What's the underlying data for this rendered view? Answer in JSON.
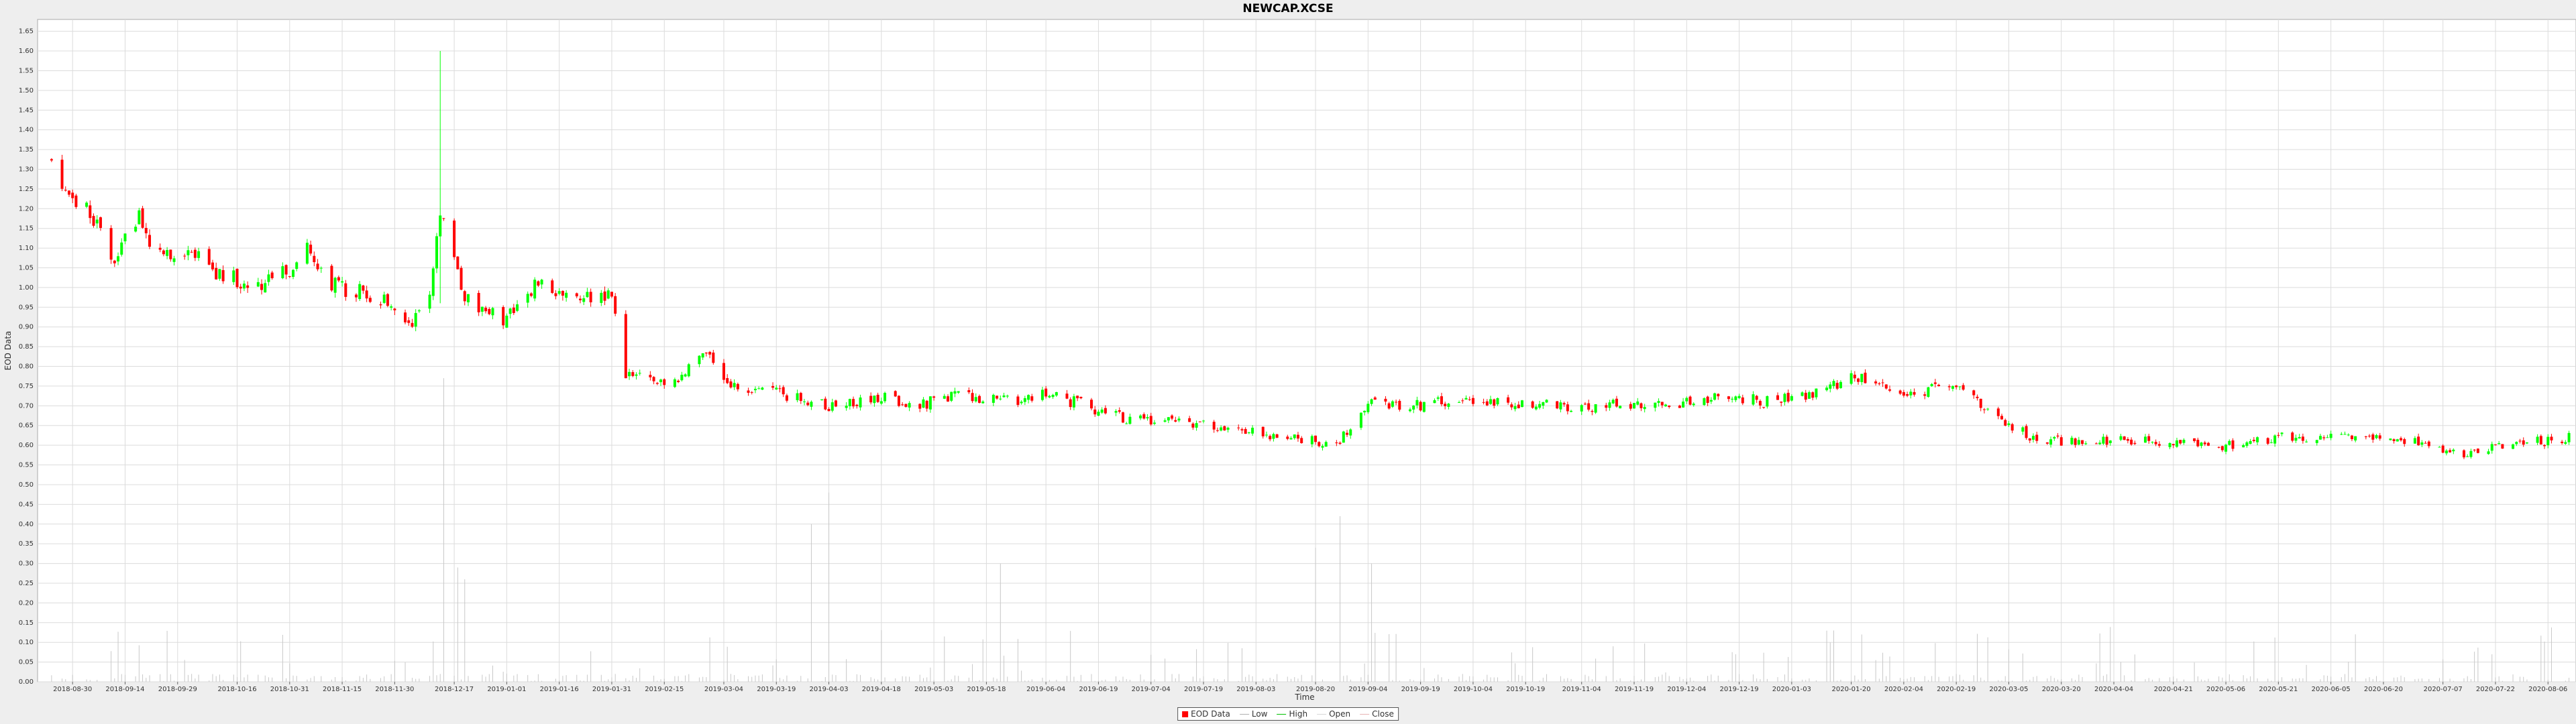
{
  "chart_data": {
    "type": "candlestick",
    "title": "NEWCAP.XCSE",
    "xlabel": "Time",
    "ylabel": "EOD Data",
    "ylim": [
      0,
      1.68
    ],
    "yticks": [
      "0.00",
      "0.05",
      "0.10",
      "0.15",
      "0.20",
      "0.25",
      "0.30",
      "0.35",
      "0.40",
      "0.45",
      "0.50",
      "0.55",
      "0.60",
      "0.65",
      "0.70",
      "0.75",
      "0.80",
      "0.85",
      "0.90",
      "0.95",
      "1.00",
      "1.05",
      "1.10",
      "1.15",
      "1.20",
      "1.25",
      "1.30",
      "1.35",
      "1.40",
      "1.45",
      "1.50",
      "1.55",
      "1.60",
      "1.65"
    ],
    "xlim": [
      "2018-08-20",
      "2020-08-14"
    ],
    "xticks": [
      "2018-08-30",
      "2018-09-14",
      "2018-09-29",
      "2018-10-16",
      "2018-10-31",
      "2018-11-15",
      "2018-11-30",
      "2018-12-17",
      "2019-01-01",
      "2019-01-16",
      "2019-01-31",
      "2019-02-15",
      "2019-03-04",
      "2019-03-19",
      "2019-04-03",
      "2019-04-18",
      "2019-05-03",
      "2019-05-18",
      "2019-06-04",
      "2019-06-19",
      "2019-07-04",
      "2019-07-19",
      "2019-08-03",
      "2019-08-20",
      "2019-09-04",
      "2019-09-19",
      "2019-10-04",
      "2019-10-19",
      "2019-11-04",
      "2019-11-19",
      "2019-12-04",
      "2019-12-19",
      "2020-01-03",
      "2020-01-20",
      "2020-02-04",
      "2020-02-19",
      "2020-03-05",
      "2020-03-20",
      "2020-04-04",
      "2020-04-21",
      "2020-05-06",
      "2020-05-21",
      "2020-06-05",
      "2020-06-20",
      "2020-07-07",
      "2020-07-22",
      "2020-08-06"
    ],
    "grid": true,
    "legend": {
      "placement": "bottom-center",
      "entries": [
        "EOD Data",
        "Low",
        "High",
        "Open",
        "Close"
      ]
    },
    "colors": {
      "up": "#00ff00",
      "down": "#ff0000",
      "volume": "#c8c8c8",
      "grid": "#dcdcdc",
      "low": "#b0b0b0",
      "high": "#00c000",
      "open": "#d8d8d8",
      "close": "#e8b4b4"
    },
    "anchors": [
      [
        "2018-08-24",
        1.32
      ],
      [
        "2018-08-30",
        1.22
      ],
      [
        "2018-09-05",
        1.18
      ],
      [
        "2018-09-10",
        1.05
      ],
      [
        "2018-09-14",
        1.12
      ],
      [
        "2018-09-18",
        1.18
      ],
      [
        "2018-09-22",
        1.07
      ],
      [
        "2018-09-29",
        1.08
      ],
      [
        "2018-10-05",
        1.07
      ],
      [
        "2018-10-10",
        1.04
      ],
      [
        "2018-10-16",
        1.02
      ],
      [
        "2018-10-22",
        1.01
      ],
      [
        "2018-10-26",
        1.03
      ],
      [
        "2018-10-31",
        1.04
      ],
      [
        "2018-11-05",
        1.1
      ],
      [
        "2018-11-10",
        1.01
      ],
      [
        "2018-11-15",
        1.0
      ],
      [
        "2018-11-20",
        0.99
      ],
      [
        "2018-11-25",
        0.97
      ],
      [
        "2018-11-30",
        0.95
      ],
      [
        "2018-12-05",
        0.92
      ],
      [
        "2018-12-10",
        0.97
      ],
      [
        "2018-12-13",
        1.2
      ],
      [
        "2018-12-17",
        1.1
      ],
      [
        "2018-12-20",
        0.97
      ],
      [
        "2018-12-27",
        0.93
      ],
      [
        "2019-01-01",
        0.92
      ],
      [
        "2019-01-06",
        1.0
      ],
      [
        "2019-01-12",
        1.0
      ],
      [
        "2019-01-16",
        0.99
      ],
      [
        "2019-01-22",
        0.97
      ],
      [
        "2019-01-27",
        0.98
      ],
      [
        "2019-01-31",
        0.97
      ],
      [
        "2019-02-04",
        0.78
      ],
      [
        "2019-02-10",
        0.77
      ],
      [
        "2019-02-15",
        0.75
      ],
      [
        "2019-02-22",
        0.79
      ],
      [
        "2019-02-27",
        0.83
      ],
      [
        "2019-03-04",
        0.77
      ],
      [
        "2019-03-10",
        0.75
      ],
      [
        "2019-03-19",
        0.73
      ],
      [
        "2019-03-26",
        0.72
      ],
      [
        "2019-04-03",
        0.7
      ],
      [
        "2019-04-10",
        0.71
      ],
      [
        "2019-04-18",
        0.72
      ],
      [
        "2019-04-25",
        0.7
      ],
      [
        "2019-05-03",
        0.71
      ],
      [
        "2019-05-10",
        0.73
      ],
      [
        "2019-05-18",
        0.72
      ],
      [
        "2019-05-26",
        0.71
      ],
      [
        "2019-06-04",
        0.73
      ],
      [
        "2019-06-12",
        0.71
      ],
      [
        "2019-06-19",
        0.69
      ],
      [
        "2019-06-26",
        0.67
      ],
      [
        "2019-07-04",
        0.66
      ],
      [
        "2019-07-12",
        0.66
      ],
      [
        "2019-07-19",
        0.65
      ],
      [
        "2019-07-26",
        0.65
      ],
      [
        "2019-08-03",
        0.63
      ],
      [
        "2019-08-12",
        0.62
      ],
      [
        "2019-08-20",
        0.61
      ],
      [
        "2019-08-25",
        0.59
      ],
      [
        "2019-08-30",
        0.65
      ],
      [
        "2019-09-04",
        0.71
      ],
      [
        "2019-09-12",
        0.7
      ],
      [
        "2019-09-19",
        0.7
      ],
      [
        "2019-09-26",
        0.71
      ],
      [
        "2019-10-04",
        0.72
      ],
      [
        "2019-10-12",
        0.71
      ],
      [
        "2019-10-19",
        0.7
      ],
      [
        "2019-10-26",
        0.7
      ],
      [
        "2019-11-04",
        0.69
      ],
      [
        "2019-11-12",
        0.7
      ],
      [
        "2019-11-19",
        0.7
      ],
      [
        "2019-11-26",
        0.71
      ],
      [
        "2019-12-04",
        0.71
      ],
      [
        "2019-12-12",
        0.72
      ],
      [
        "2019-12-19",
        0.72
      ],
      [
        "2019-12-26",
        0.71
      ],
      [
        "2020-01-03",
        0.72
      ],
      [
        "2020-01-12",
        0.74
      ],
      [
        "2020-01-20",
        0.77
      ],
      [
        "2020-01-27",
        0.76
      ],
      [
        "2020-02-04",
        0.74
      ],
      [
        "2020-02-12",
        0.74
      ],
      [
        "2020-02-19",
        0.74
      ],
      [
        "2020-02-26",
        0.71
      ],
      [
        "2020-03-05",
        0.65
      ],
      [
        "2020-03-12",
        0.62
      ],
      [
        "2020-03-20",
        0.61
      ],
      [
        "2020-03-28",
        0.61
      ],
      [
        "2020-04-04",
        0.61
      ],
      [
        "2020-04-12",
        0.61
      ],
      [
        "2020-04-21",
        0.61
      ],
      [
        "2020-04-28",
        0.6
      ],
      [
        "2020-05-06",
        0.6
      ],
      [
        "2020-05-14",
        0.61
      ],
      [
        "2020-05-21",
        0.62
      ],
      [
        "2020-05-28",
        0.62
      ],
      [
        "2020-06-05",
        0.62
      ],
      [
        "2020-06-12",
        0.62
      ],
      [
        "2020-06-20",
        0.63
      ],
      [
        "2020-06-27",
        0.61
      ],
      [
        "2020-07-07",
        0.59
      ],
      [
        "2020-07-14",
        0.58
      ],
      [
        "2020-07-22",
        0.6
      ],
      [
        "2020-07-29",
        0.61
      ],
      [
        "2020-08-06",
        0.61
      ],
      [
        "2020-08-12",
        0.62
      ]
    ],
    "spikes": [
      [
        "2018-10-28",
        1.24,
        0.98
      ],
      [
        "2018-12-13",
        1.6,
        0.96
      ],
      [
        "2018-12-15",
        1.35,
        1.0
      ],
      [
        "2018-12-02",
        0.93,
        0.84
      ],
      [
        "2019-03-30",
        0.73,
        0.66
      ],
      [
        "2020-03-14",
        0.68,
        0.53
      ]
    ],
    "volume_spikes": [
      [
        "2018-12-14",
        0.77
      ],
      [
        "2018-12-15",
        0.46
      ],
      [
        "2018-12-18",
        0.29
      ],
      [
        "2018-12-20",
        0.26
      ],
      [
        "2019-04-03",
        0.48
      ],
      [
        "2019-03-29",
        0.4
      ],
      [
        "2019-08-27",
        0.42
      ],
      [
        "2019-09-01",
        0.42
      ],
      [
        "2019-08-20",
        0.34
      ],
      [
        "2019-09-05",
        0.3
      ],
      [
        "2019-05-22",
        0.3
      ],
      [
        "2019-05-25",
        0.3
      ]
    ]
  }
}
